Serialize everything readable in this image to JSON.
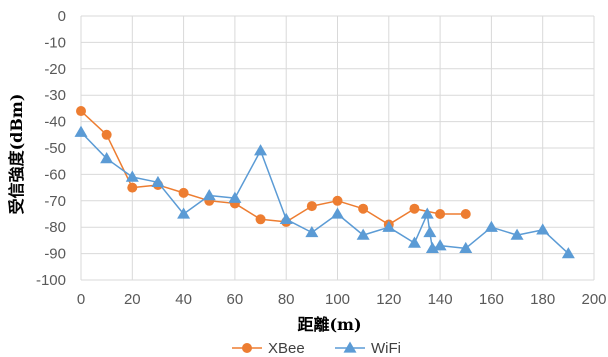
{
  "chart_data": {
    "type": "line",
    "title": "",
    "xlabel": "距離(m)",
    "ylabel": "受信強度(dBm)",
    "xlim": [
      0,
      200
    ],
    "ylim": [
      -100,
      0
    ],
    "x_ticks": [
      0,
      20,
      40,
      60,
      80,
      100,
      120,
      140,
      160,
      180,
      200
    ],
    "y_ticks": [
      0,
      -10,
      -20,
      -30,
      -40,
      -50,
      -60,
      -70,
      -80,
      -90,
      -100
    ],
    "grid": {
      "x": true,
      "y": true
    },
    "legend": "bottom",
    "series": [
      {
        "name": "XBee",
        "color": "#ED7D31",
        "marker": "circle",
        "points": [
          [
            0,
            -36
          ],
          [
            10,
            -45
          ],
          [
            20,
            -65
          ],
          [
            30,
            -64
          ],
          [
            40,
            -67
          ],
          [
            50,
            -70
          ],
          [
            60,
            -71
          ],
          [
            70,
            -77
          ],
          [
            80,
            -78
          ],
          [
            90,
            -72
          ],
          [
            100,
            -70
          ],
          [
            110,
            -73
          ],
          [
            120,
            -79
          ],
          [
            130,
            -73
          ],
          [
            140,
            -75
          ],
          [
            150,
            -75
          ]
        ]
      },
      {
        "name": "WiFi",
        "color": "#5B9BD5",
        "marker": "triangle",
        "points": [
          [
            0,
            -44
          ],
          [
            10,
            -54
          ],
          [
            20,
            -61
          ],
          [
            30,
            -63
          ],
          [
            40,
            -75
          ],
          [
            50,
            -68
          ],
          [
            60,
            -69
          ],
          [
            70,
            -51
          ],
          [
            80,
            -77
          ],
          [
            90,
            -82
          ],
          [
            100,
            -75
          ],
          [
            110,
            -83
          ],
          [
            120,
            -80
          ],
          [
            130,
            -86
          ],
          [
            135,
            -75
          ],
          [
            136,
            -82
          ],
          [
            137,
            -88
          ],
          [
            140,
            -87
          ],
          [
            150,
            -88
          ],
          [
            160,
            -80
          ],
          [
            170,
            -83
          ],
          [
            180,
            -81
          ],
          [
            190,
            -90
          ]
        ]
      }
    ]
  }
}
